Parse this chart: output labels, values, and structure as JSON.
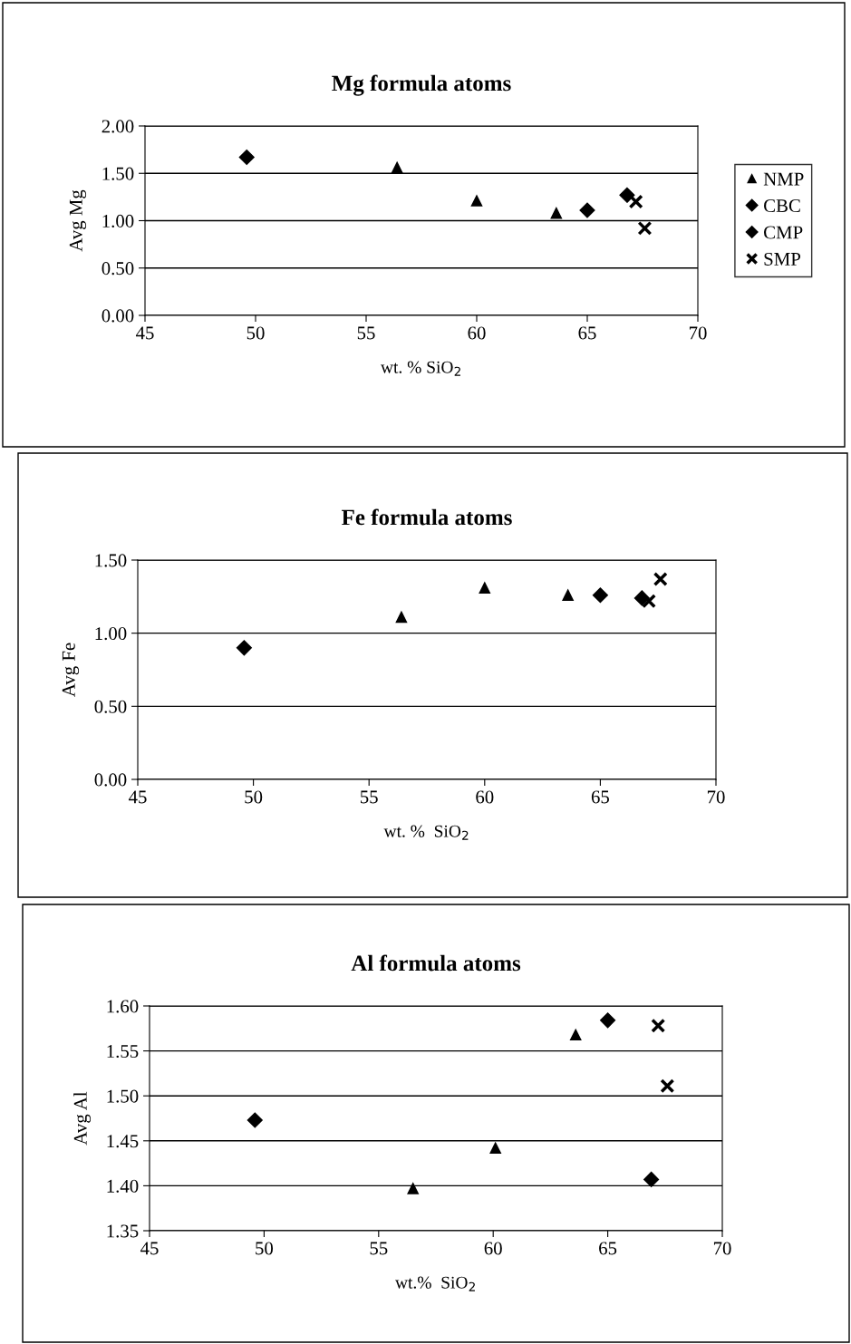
{
  "chart_data": [
    {
      "type": "scatter",
      "title": "Mg formula atoms",
      "xlabel": "wt. % SiO$_{2}$",
      "ylabel": "Avg Mg",
      "xlim": [
        45,
        70
      ],
      "xticks": [
        45,
        50,
        55,
        60,
        65,
        70
      ],
      "ylim": [
        0,
        2
      ],
      "yticks": [
        {
          "value": 0,
          "label": "0.00"
        },
        {
          "value": 0.5,
          "label": "0.50"
        },
        {
          "value": 1,
          "label": "1.00"
        },
        {
          "value": 1.5,
          "label": "1.50"
        },
        {
          "value": 2,
          "label": "2.00"
        }
      ],
      "grid": "y",
      "legend": "right",
      "series": [
        {
          "name": "NMP",
          "color": "#000000",
          "marker": "triangle",
          "x": [
            56.4,
            60.0,
            63.6
          ],
          "values": [
            1.56,
            1.21,
            1.08
          ]
        },
        {
          "name": "CBC",
          "color": "#000000",
          "marker": "diamond",
          "x": [
            49.6,
            66.8
          ],
          "values": [
            1.67,
            1.27
          ]
        },
        {
          "name": "CMP",
          "color": "#000000",
          "marker": "diamond",
          "x": [
            65.0
          ],
          "values": [
            1.11
          ]
        },
        {
          "name": "SMP",
          "color": "#000000",
          "marker": "cross",
          "x": [
            67.2,
            67.6
          ],
          "values": [
            1.2,
            0.92
          ]
        }
      ]
    },
    {
      "type": "scatter",
      "title": "Fe formula atoms",
      "xlabel": "wt. %  SiO$_{2}$",
      "ylabel": "Avg Fe",
      "xlim": [
        45,
        70
      ],
      "xticks": [
        45,
        50,
        55,
        60,
        65,
        70
      ],
      "ylim": [
        0,
        1.5
      ],
      "yticks": [
        {
          "value": 0,
          "label": "0.00"
        },
        {
          "value": 0.5,
          "label": "0.50"
        },
        {
          "value": 1,
          "label": "1.00"
        },
        {
          "value": 1.5,
          "label": "1.50"
        }
      ],
      "grid": "y",
      "series": [
        {
          "color": "#000000",
          "marker": "triangle",
          "x": [
            56.4,
            60.0,
            63.6
          ],
          "values": [
            1.11,
            1.31,
            1.26
          ]
        },
        {
          "color": "#000000",
          "marker": "diamond",
          "x": [
            49.6,
            66.8
          ],
          "values": [
            0.9,
            1.24
          ]
        },
        {
          "color": "#000000",
          "marker": "diamond",
          "x": [
            65.0
          ],
          "values": [
            1.26
          ]
        },
        {
          "color": "#000000",
          "marker": "cross",
          "x": [
            67.6,
            67.1
          ],
          "values": [
            1.37,
            1.22
          ]
        }
      ]
    },
    {
      "type": "scatter",
      "title": "Al formula atoms",
      "xlabel": "wt.%  SiO$_{2}$",
      "ylabel": "Avg Al",
      "xlim": [
        45,
        70
      ],
      "xticks": [
        45,
        50,
        55,
        60,
        65,
        70
      ],
      "ylim": [
        1.35,
        1.6
      ],
      "yticks": [
        {
          "value": 1.35,
          "label": "1.35"
        },
        {
          "value": 1.4,
          "label": "1.40"
        },
        {
          "value": 1.45,
          "label": "1.45"
        },
        {
          "value": 1.5,
          "label": "1.50"
        },
        {
          "value": 1.55,
          "label": "1.55"
        },
        {
          "value": 1.6,
          "label": "1.60"
        }
      ],
      "grid": "y",
      "series": [
        {
          "color": "#000000",
          "marker": "triangle",
          "x": [
            56.5,
            60.1,
            63.6
          ],
          "values": [
            1.397,
            1.442,
            1.568
          ]
        },
        {
          "color": "#000000",
          "marker": "diamond",
          "x": [
            49.6,
            66.9
          ],
          "values": [
            1.473,
            1.407
          ]
        },
        {
          "color": "#000000",
          "marker": "diamond",
          "x": [
            65.0
          ],
          "values": [
            1.584
          ]
        },
        {
          "color": "#000000",
          "marker": "cross",
          "x": [
            67.2,
            67.6
          ],
          "values": [
            1.578,
            1.511
          ]
        }
      ]
    }
  ]
}
